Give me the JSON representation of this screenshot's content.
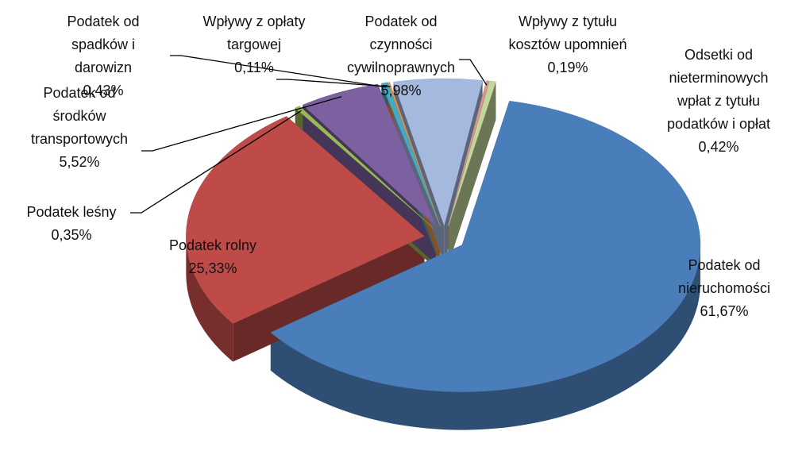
{
  "chart_data": {
    "type": "pie3d",
    "categories": [
      "Podatek od nieruchomości",
      "Podatek rolny",
      "Podatek leśny",
      "Podatek od środków transportowych",
      "Podatek od spadków i darowizn",
      "Wpływy z opłaty targowej",
      "Podatek od czynności cywilnoprawnych",
      "Wpływy z tytułu kosztów upomnień",
      "Odsetki od nieterminowych wpłat z tytułu podatków i opłat"
    ],
    "values": [
      61.67,
      25.33,
      0.35,
      5.52,
      0.43,
      0.11,
      5.98,
      0.19,
      0.42
    ],
    "value_labels": [
      "61,67%",
      "25,33%",
      "0,35%",
      "5,52%",
      "0,43%",
      "0,11%",
      "5,98%",
      "0,19%",
      "0,42%"
    ],
    "colors": [
      "#4a7ebb",
      "#be4b48",
      "#98b954",
      "#7d60a0",
      "#46aac5",
      "#f69240",
      "#a5b8de",
      "#d99694",
      "#c3d69b"
    ]
  }
}
